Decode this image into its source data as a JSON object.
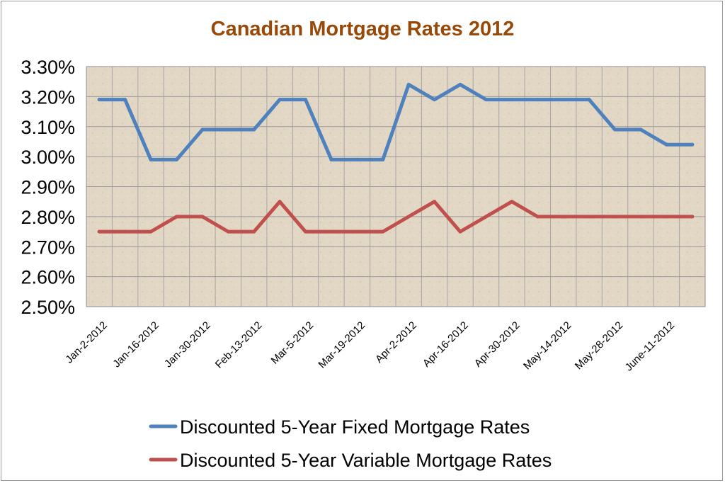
{
  "chart_data": {
    "type": "line",
    "title": "Canadian Mortgage Rates 2012",
    "xlabel": "",
    "ylabel": "",
    "ylim": [
      2.5,
      3.3
    ],
    "yticks": [
      2.5,
      2.6,
      2.7,
      2.8,
      2.9,
      3.0,
      3.1,
      3.2,
      3.3
    ],
    "ytick_labels": [
      "2.50%",
      "2.60%",
      "2.70%",
      "2.80%",
      "2.90%",
      "3.00%",
      "3.10%",
      "3.20%",
      "3.30%"
    ],
    "x_tick_labels": [
      "Jan-2-2012",
      "Jan-16-2012",
      "Jan-30-2012",
      "Feb-13-2012",
      "Mar-5-2012",
      "Mar-19-2012",
      "Apr-2-2012",
      "Apr-16-2012",
      "Apr-30-2012",
      "May-14-2012",
      "May-28-2012",
      "June-11-2012"
    ],
    "x_tick_positions": [
      0,
      2,
      4,
      6,
      8,
      10,
      12,
      14,
      16,
      18,
      20,
      22
    ],
    "grid": true,
    "legend_placement": "bottom",
    "series": [
      {
        "name": "Discounted 5-Year Fixed Mortgage Rates",
        "color": "#4f81bd",
        "values": [
          3.19,
          3.19,
          2.99,
          2.99,
          3.09,
          3.09,
          3.09,
          3.19,
          3.19,
          2.99,
          2.99,
          2.99,
          3.24,
          3.19,
          3.24,
          3.19,
          3.19,
          3.19,
          3.19,
          3.19,
          3.09,
          3.09,
          3.04,
          3.04
        ]
      },
      {
        "name": "Discounted 5-Year Variable Mortgage Rates",
        "color": "#c0504d",
        "values": [
          2.75,
          2.75,
          2.75,
          2.8,
          2.8,
          2.75,
          2.75,
          2.85,
          2.75,
          2.75,
          2.75,
          2.75,
          2.8,
          2.85,
          2.75,
          2.8,
          2.85,
          2.8,
          2.8,
          2.8,
          2.8,
          2.8,
          2.8,
          2.8
        ]
      }
    ],
    "title_color": "#984807",
    "plot_background": "#e3d8c8"
  }
}
